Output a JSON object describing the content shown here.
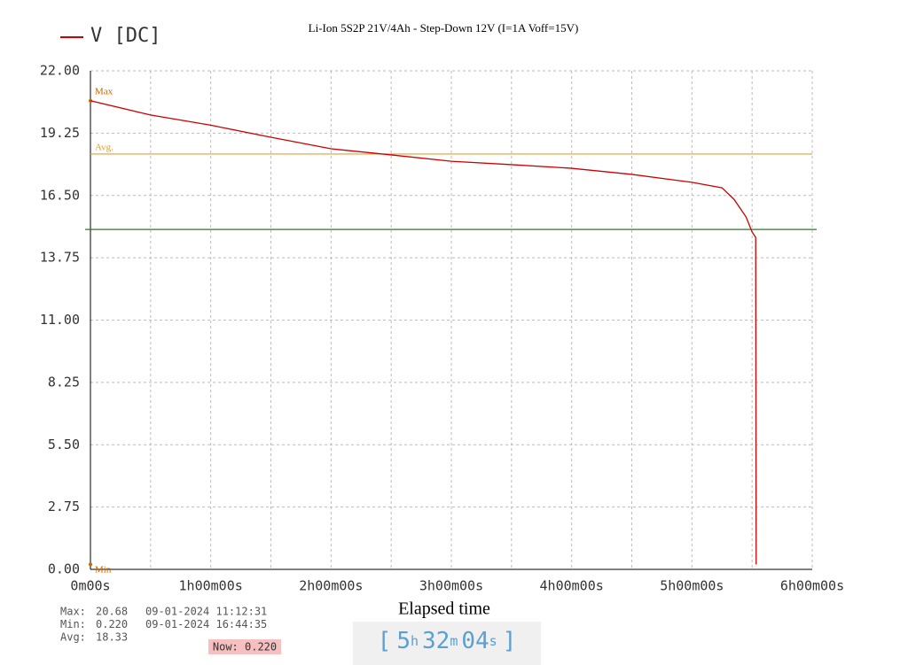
{
  "chart_data": {
    "type": "line",
    "title": "Li-Ion 5S2P 21V/4Ah - Step-Down 12V (I=1A  Voff=15V)",
    "x_label": "Elapsed time",
    "x": [
      0,
      0.5,
      1,
      1.5,
      2,
      2.5,
      3,
      3.5,
      4,
      4.5,
      5,
      5.25,
      5.35,
      5.45,
      5.5,
      5.53,
      5.534
    ],
    "series": [
      {
        "name": "V  [DC]",
        "color": "#cc0000",
        "values": [
          20.68,
          20.05,
          19.6,
          19.07,
          18.56,
          18.29,
          18.01,
          17.86,
          17.7,
          17.43,
          17.08,
          16.84,
          16.33,
          15.55,
          14.89,
          14.65,
          0.22
        ]
      }
    ],
    "xlim": [
      0,
      6
    ],
    "xticks": [
      {
        "value": 0,
        "label": "0m00s"
      },
      {
        "value": 1,
        "label": "1h00m00s"
      },
      {
        "value": 2,
        "label": "2h00m00s"
      },
      {
        "value": 3,
        "label": "3h00m00s"
      },
      {
        "value": 4,
        "label": "4h00m00s"
      },
      {
        "value": 5,
        "label": "5h00m00s"
      },
      {
        "value": 6,
        "label": "6h00m00s"
      }
    ],
    "x_minor_ticks": [
      0.5,
      1.5,
      2.5,
      3.5,
      4.5,
      5.5
    ],
    "ylim": [
      0,
      22
    ],
    "yticks": [
      {
        "value": 0,
        "label": "0.00"
      },
      {
        "value": 2.75,
        "label": "2.75"
      },
      {
        "value": 5.5,
        "label": "5.50"
      },
      {
        "value": 8.25,
        "label": "8.25"
      },
      {
        "value": 11,
        "label": "11.00"
      },
      {
        "value": 13.75,
        "label": "13.75"
      },
      {
        "value": 16.5,
        "label": "16.50"
      },
      {
        "value": 19.25,
        "label": "19.25"
      },
      {
        "value": 22,
        "label": "22.00"
      }
    ],
    "grid": true,
    "reference_lines": [
      {
        "label": "Max",
        "value": 20.68,
        "color": "#cc6600",
        "full": false
      },
      {
        "label": "Avg.",
        "value": 18.33,
        "color": "#e0a030",
        "full": true
      },
      {
        "label": "Min",
        "value": 0.22,
        "color": "#cc6600",
        "full": false
      }
    ],
    "threshold": {
      "value": 15,
      "color": "#208020"
    }
  },
  "stats": [
    {
      "label": "Max:",
      "value": "20.68",
      "time": "09-01-2024 11:12:31"
    },
    {
      "label": "Min:",
      "value": "0.220",
      "time": "09-01-2024 16:44:35"
    },
    {
      "label": "Avg:",
      "value": "18.33"
    }
  ],
  "now": "Now: 0.220",
  "elapsed": [
    "[",
    "5",
    "h",
    "32",
    "m",
    "04",
    "s",
    "]"
  ]
}
